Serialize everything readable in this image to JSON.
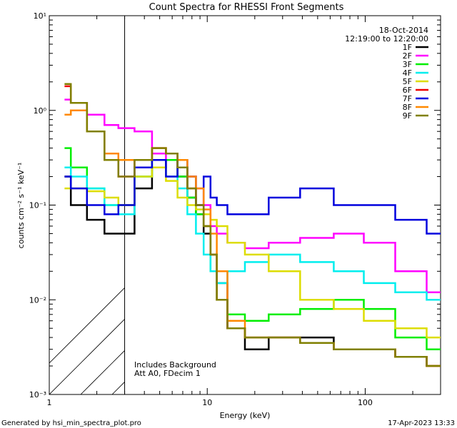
{
  "chart_data": {
    "type": "line",
    "title": "Count Spectra for RHESSI Front Segments",
    "xlabel": "Energy (keV)",
    "ylabel": "counts cm⁻² s⁻¹ keV⁻¹",
    "xscale": "log",
    "yscale": "log",
    "xlim": [
      1,
      300
    ],
    "ylim": [
      0.001,
      10
    ],
    "x_ticks": [
      {
        "value": 1,
        "label": "1"
      },
      {
        "value": 10,
        "label": "10"
      },
      {
        "value": 100,
        "label": "100"
      }
    ],
    "y_ticks": [
      {
        "value": 10,
        "label": "10¹"
      },
      {
        "value": 1,
        "label": "10⁰"
      },
      {
        "value": 0.1,
        "label": "10⁻¹"
      },
      {
        "value": 0.01,
        "label": "10⁻²"
      },
      {
        "value": 0.001,
        "label": "10⁻³"
      }
    ],
    "hatched_region": {
      "x_from": 1,
      "x_to": 3
    },
    "date": "18-Oct-2014",
    "time_range": "12:19:00 to 12:20:00",
    "notes": [
      "Includes Background",
      "Att A0, FDecim 1"
    ],
    "series": [
      {
        "name": "1F",
        "color": "#000000",
        "energies": [
          1.25,
          1.5,
          2,
          2.5,
          3,
          4,
          5,
          6,
          7,
          8,
          9,
          10,
          11,
          12,
          15,
          20,
          30,
          50,
          80,
          120,
          200,
          300
        ],
        "values": [
          0.2,
          0.1,
          0.07,
          0.05,
          0.05,
          0.15,
          0.25,
          0.3,
          0.2,
          0.12,
          0.08,
          0.05,
          0.03,
          0.015,
          0.005,
          0.003,
          0.004,
          0.004,
          0.003,
          0.003,
          0.0025,
          0.002
        ]
      },
      {
        "name": "2F",
        "color": "#ff00ff",
        "energies": [
          1.25,
          1.5,
          2,
          2.5,
          3,
          4,
          5,
          6,
          7,
          8,
          9,
          10,
          11,
          12,
          15,
          20,
          30,
          50,
          80,
          120,
          200,
          300
        ],
        "values": [
          1.3,
          1.2,
          0.9,
          0.7,
          0.65,
          0.6,
          0.35,
          0.3,
          0.25,
          0.2,
          0.15,
          0.1,
          0.06,
          0.05,
          0.04,
          0.035,
          0.04,
          0.045,
          0.05,
          0.04,
          0.02,
          0.012
        ]
      },
      {
        "name": "3F",
        "color": "#00ee00",
        "energies": [
          1.25,
          1.5,
          2,
          2.5,
          3,
          4,
          5,
          6,
          7,
          8,
          9,
          10,
          11,
          12,
          15,
          20,
          30,
          50,
          80,
          120,
          200,
          300
        ],
        "values": [
          0.4,
          0.25,
          0.15,
          0.1,
          0.1,
          0.2,
          0.3,
          0.3,
          0.2,
          0.12,
          0.08,
          0.06,
          0.02,
          0.01,
          0.007,
          0.006,
          0.007,
          0.008,
          0.01,
          0.008,
          0.004,
          0.003
        ]
      },
      {
        "name": "4F",
        "color": "#00eeee",
        "energies": [
          1.25,
          1.5,
          2,
          2.5,
          3,
          4,
          5,
          6,
          7,
          8,
          9,
          10,
          11,
          12,
          15,
          20,
          30,
          50,
          80,
          120,
          200,
          300
        ],
        "values": [
          0.25,
          0.2,
          0.15,
          0.1,
          0.08,
          0.2,
          0.25,
          0.2,
          0.15,
          0.08,
          0.05,
          0.03,
          0.02,
          0.015,
          0.02,
          0.025,
          0.03,
          0.025,
          0.02,
          0.015,
          0.012,
          0.01
        ]
      },
      {
        "name": "5F",
        "color": "#dddd00",
        "energies": [
          1.25,
          1.5,
          2,
          2.5,
          3,
          4,
          5,
          6,
          7,
          8,
          9,
          10,
          11,
          12,
          15,
          20,
          30,
          50,
          80,
          120,
          200,
          300
        ],
        "values": [
          0.15,
          0.15,
          0.14,
          0.12,
          0.1,
          0.2,
          0.25,
          0.18,
          0.12,
          0.1,
          0.09,
          0.08,
          0.07,
          0.06,
          0.04,
          0.03,
          0.02,
          0.01,
          0.008,
          0.006,
          0.005,
          0.004
        ]
      },
      {
        "name": "6F",
        "color": "#ee0000",
        "energies": [
          1.25,
          1.5,
          2,
          2.5,
          3,
          4,
          5,
          6,
          7,
          8,
          9,
          10,
          11,
          12,
          15,
          20,
          30,
          50,
          80,
          120,
          200,
          300
        ],
        "values": [
          1.8,
          1.2,
          0.6,
          0.3,
          0.2,
          0.3,
          0.4,
          0.35,
          0.25,
          0.15,
          0.1,
          0.06,
          0.03,
          0.01,
          0.005,
          0.004,
          0.004,
          0.0035,
          0.003,
          0.003,
          0.0025,
          0.002
        ]
      },
      {
        "name": "7F",
        "color": "#0000dd",
        "energies": [
          1.25,
          1.5,
          2,
          2.5,
          3,
          4,
          5,
          6,
          7,
          8,
          9,
          10,
          11,
          12,
          15,
          20,
          30,
          50,
          80,
          120,
          200,
          300
        ],
        "values": [
          0.2,
          0.15,
          0.1,
          0.08,
          0.1,
          0.25,
          0.3,
          0.2,
          0.3,
          0.2,
          0.1,
          0.2,
          0.12,
          0.1,
          0.08,
          0.08,
          0.12,
          0.15,
          0.1,
          0.1,
          0.07,
          0.05
        ]
      },
      {
        "name": "8F",
        "color": "#ff8800",
        "energies": [
          1.25,
          1.5,
          2,
          2.5,
          3,
          4,
          5,
          6,
          7,
          8,
          9,
          10,
          11,
          12,
          15,
          20,
          30,
          50,
          80,
          120,
          200,
          300
        ],
        "values": [
          0.9,
          1.0,
          0.6,
          0.35,
          0.3,
          0.3,
          0.4,
          0.35,
          0.3,
          0.2,
          0.15,
          0.09,
          0.05,
          0.02,
          0.006,
          0.004,
          0.004,
          0.0035,
          0.003,
          0.003,
          0.0025,
          0.002
        ]
      },
      {
        "name": "9F",
        "color": "#808000",
        "energies": [
          1.25,
          1.5,
          2,
          2.5,
          3,
          4,
          5,
          6,
          7,
          8,
          9,
          10,
          11,
          12,
          15,
          20,
          30,
          50,
          80,
          120,
          200,
          300
        ],
        "values": [
          1.9,
          1.2,
          0.6,
          0.3,
          0.2,
          0.3,
          0.4,
          0.35,
          0.25,
          0.15,
          0.1,
          0.06,
          0.03,
          0.01,
          0.005,
          0.004,
          0.004,
          0.0035,
          0.003,
          0.003,
          0.0025,
          0.002
        ]
      }
    ]
  },
  "footer": {
    "left": "Generated by hsi_min_spectra_plot.pro",
    "right": "17-Apr-2023 13:33"
  }
}
